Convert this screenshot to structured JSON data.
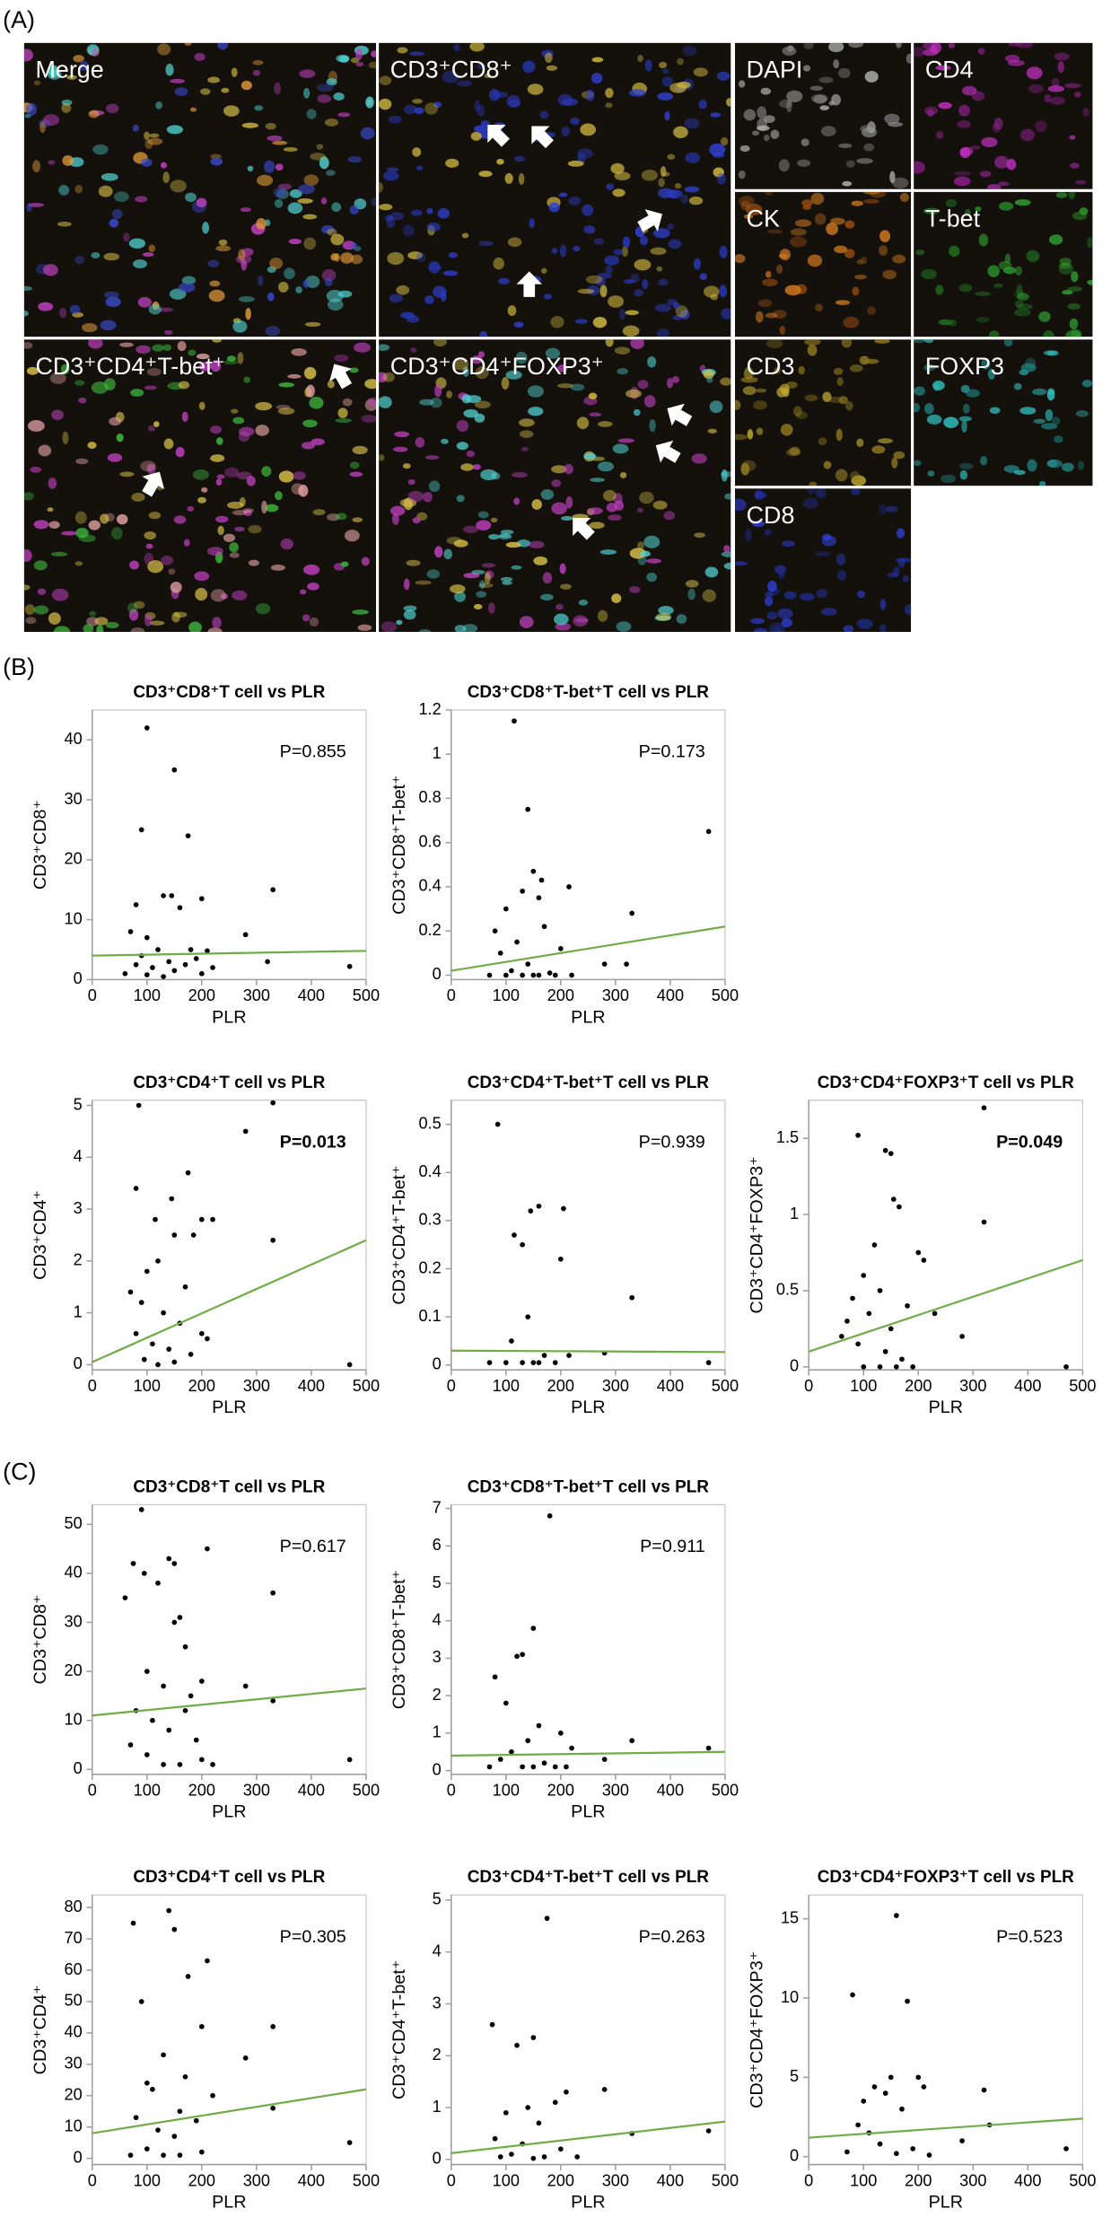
{
  "panel_labels": [
    "(A)",
    "(B)",
    "(C)"
  ],
  "images": {
    "tiles": [
      "Merge",
      "CD3⁺CD8⁺",
      "DAPI",
      "CD4",
      "CK",
      "T-bet",
      "CD3⁺CD4⁺T-bet⁺",
      "CD3⁺CD4⁺FOXP3⁺",
      "CD3",
      "FOXP3",
      "CD8"
    ]
  },
  "chart_data": [
    {
      "type": "scatter",
      "title": "CD3⁺CD8⁺T cell vs PLR",
      "xlabel": "PLR",
      "ylabel": "CD3⁺CD8⁺",
      "p_value": "P=0.855",
      "p_bold": false,
      "xlim": [
        0,
        500
      ],
      "xticks": [
        0,
        100,
        200,
        300,
        400,
        500
      ],
      "ylim": [
        0,
        45
      ],
      "yticks": [
        0,
        10,
        20,
        30,
        40
      ],
      "color": "#000000",
      "x": [
        100,
        150,
        90,
        175,
        330,
        130,
        145,
        200,
        80,
        160,
        280,
        70,
        100,
        120,
        180,
        210,
        90,
        140,
        170,
        110,
        320,
        470,
        60,
        200,
        150,
        130,
        100,
        80,
        220,
        190
      ],
      "values": [
        42,
        35,
        25,
        24,
        15,
        14,
        14,
        13.5,
        12.5,
        12,
        7.5,
        8,
        7,
        5,
        5,
        4.8,
        4,
        3,
        2.5,
        2,
        3,
        2.2,
        1,
        1,
        1.5,
        0.5,
        0.8,
        2.5,
        2,
        3.5
      ],
      "fit": {
        "color": "#70ad47",
        "x": [
          0,
          500
        ],
        "values": [
          4,
          4.8
        ]
      }
    },
    {
      "type": "scatter",
      "title": "CD3⁺CD8⁺T-bet⁺T cell vs PLR",
      "xlabel": "PLR",
      "ylabel": "CD3⁺CD8⁺T-bet⁺",
      "p_value": "P=0.173",
      "p_bold": false,
      "xlim": [
        0,
        500
      ],
      "xticks": [
        0,
        100,
        200,
        300,
        400,
        500
      ],
      "ylim": [
        -0.02,
        1.2
      ],
      "yticks": [
        0,
        0.2,
        0.4,
        0.6,
        0.8,
        1,
        1.2
      ],
      "color": "#000000",
      "x": [
        115,
        140,
        470,
        150,
        165,
        215,
        130,
        160,
        100,
        330,
        80,
        170,
        120,
        200,
        90,
        140,
        280,
        320,
        100,
        130,
        160,
        190,
        220,
        70,
        110,
        180,
        150
      ],
      "values": [
        1.15,
        0.75,
        0.65,
        0.47,
        0.43,
        0.4,
        0.38,
        0.35,
        0.3,
        0.28,
        0.2,
        0.22,
        0.15,
        0.12,
        0.1,
        0.05,
        0.05,
        0.05,
        0,
        0,
        0,
        0,
        0,
        0,
        0.02,
        0.01,
        0
      ],
      "fit": {
        "color": "#70ad47",
        "x": [
          0,
          500
        ],
        "values": [
          0.02,
          0.22
        ]
      }
    },
    {
      "type": "scatter",
      "title": "CD3⁺CD4⁺T cell vs PLR",
      "xlabel": "PLR",
      "ylabel": "CD3⁺CD4⁺",
      "p_value": "P=0.013",
      "p_bold": true,
      "xlim": [
        0,
        500
      ],
      "xticks": [
        0,
        100,
        200,
        300,
        400,
        500
      ],
      "ylim": [
        -0.1,
        5.1
      ],
      "yticks": [
        0,
        1,
        2,
        3,
        4,
        5
      ],
      "color": "#000000",
      "x": [
        85,
        330,
        280,
        175,
        80,
        145,
        200,
        220,
        115,
        150,
        330,
        185,
        120,
        100,
        170,
        70,
        90,
        130,
        160,
        200,
        210,
        110,
        140,
        180,
        95,
        470,
        120,
        150,
        80
      ],
      "values": [
        5,
        5.05,
        4.5,
        3.7,
        3.4,
        3.2,
        2.8,
        2.8,
        2.8,
        2.5,
        2.4,
        2.5,
        2,
        1.8,
        1.5,
        1.4,
        1.2,
        1,
        0.8,
        0.6,
        0.5,
        0.4,
        0.3,
        0.2,
        0.1,
        0,
        0,
        0.05,
        0.6
      ],
      "fit": {
        "color": "#70ad47",
        "x": [
          0,
          500
        ],
        "values": [
          0.05,
          2.4
        ]
      }
    },
    {
      "type": "scatter",
      "title": "CD3⁺CD4⁺T-bet⁺T cell vs PLR",
      "xlabel": "PLR",
      "ylabel": "CD3⁺CD4⁺T-bet⁺",
      "p_value": "P=0.939",
      "p_bold": false,
      "xlim": [
        0,
        500
      ],
      "xticks": [
        0,
        100,
        200,
        300,
        400,
        500
      ],
      "ylim": [
        -0.01,
        0.55
      ],
      "yticks": [
        0,
        0.1,
        0.2,
        0.3,
        0.4,
        0.5
      ],
      "color": "#000000",
      "x": [
        85,
        160,
        145,
        205,
        115,
        130,
        200,
        330,
        140,
        110,
        170,
        215,
        100,
        130,
        160,
        190,
        70,
        280,
        470,
        150
      ],
      "values": [
        0.5,
        0.33,
        0.32,
        0.325,
        0.27,
        0.25,
        0.22,
        0.14,
        0.1,
        0.05,
        0.02,
        0.02,
        0.005,
        0.005,
        0.005,
        0.005,
        0.005,
        0.025,
        0.005,
        0.005
      ],
      "fit": {
        "color": "#70ad47",
        "x": [
          0,
          500
        ],
        "values": [
          0.03,
          0.027
        ]
      }
    },
    {
      "type": "scatter",
      "title": "CD3⁺CD4⁺FOXP3⁺T cell vs PLR",
      "xlabel": "PLR",
      "ylabel": "CD3⁺CD4⁺FOXP3⁺",
      "p_value": "P=0.049",
      "p_bold": true,
      "xlim": [
        0,
        500
      ],
      "xticks": [
        0,
        100,
        200,
        300,
        400,
        500
      ],
      "ylim": [
        -0.02,
        1.75
      ],
      "yticks": [
        0,
        0.5,
        1,
        1.5
      ],
      "color": "#000000",
      "x": [
        320,
        90,
        140,
        150,
        155,
        165,
        320,
        120,
        200,
        210,
        100,
        130,
        80,
        180,
        110,
        230,
        70,
        150,
        280,
        90,
        140,
        170,
        100,
        130,
        160,
        190,
        470,
        60
      ],
      "values": [
        1.7,
        1.52,
        1.42,
        1.4,
        1.1,
        1.05,
        0.95,
        0.8,
        0.75,
        0.7,
        0.6,
        0.5,
        0.45,
        0.4,
        0.35,
        0.35,
        0.3,
        0.25,
        0.2,
        0.15,
        0.1,
        0.05,
        0,
        0,
        0,
        0,
        0,
        0.2
      ],
      "fit": {
        "color": "#70ad47",
        "x": [
          0,
          500
        ],
        "values": [
          0.1,
          0.7
        ]
      }
    },
    {
      "type": "scatter",
      "title": "CD3⁺CD8⁺T cell vs PLR",
      "xlabel": "PLR",
      "ylabel": "CD3⁺CD8⁺",
      "p_value": "P=0.617",
      "p_bold": false,
      "xlim": [
        0,
        500
      ],
      "xticks": [
        0,
        100,
        200,
        300,
        400,
        500
      ],
      "ylim": [
        -1,
        54
      ],
      "yticks": [
        0,
        10,
        20,
        30,
        40,
        50
      ],
      "color": "#000000",
      "x": [
        90,
        75,
        95,
        140,
        150,
        210,
        120,
        330,
        160,
        150,
        170,
        100,
        200,
        280,
        130,
        180,
        330,
        80,
        110,
        140,
        190,
        70,
        100,
        130,
        160,
        200,
        470,
        220,
        60,
        170
      ],
      "values": [
        53,
        42,
        40,
        43,
        42,
        45,
        38,
        36,
        31,
        30,
        25,
        20,
        18,
        17,
        17,
        15,
        14,
        12,
        10,
        8,
        6,
        5,
        3,
        1,
        1,
        2,
        2,
        1,
        35,
        12
      ],
      "fit": {
        "color": "#70ad47",
        "x": [
          0,
          500
        ],
        "values": [
          11,
          16.5
        ]
      }
    },
    {
      "type": "scatter",
      "title": "CD3⁺CD8⁺T-bet⁺T cell vs PLR",
      "xlabel": "PLR",
      "ylabel": "CD3⁺CD8⁺T-bet⁺",
      "p_value": "P=0.911",
      "p_bold": false,
      "xlim": [
        0,
        500
      ],
      "xticks": [
        0,
        100,
        200,
        300,
        400,
        500
      ],
      "ylim": [
        -0.1,
        7.1
      ],
      "yticks": [
        0,
        1,
        2,
        3,
        4,
        5,
        6,
        7
      ],
      "color": "#000000",
      "x": [
        180,
        150,
        130,
        120,
        80,
        100,
        160,
        200,
        140,
        330,
        470,
        110,
        220,
        90,
        170,
        280,
        70,
        130,
        190,
        150,
        210
      ],
      "values": [
        6.8,
        3.8,
        3.1,
        3.05,
        2.5,
        1.8,
        1.2,
        1,
        0.8,
        0.8,
        0.6,
        0.5,
        0.6,
        0.3,
        0.2,
        0.3,
        0.1,
        0.1,
        0.1,
        0.1,
        0.1
      ],
      "fit": {
        "color": "#70ad47",
        "x": [
          0,
          500
        ],
        "values": [
          0.4,
          0.5
        ]
      }
    },
    {
      "type": "scatter",
      "title": "CD3⁺CD4⁺T cell vs PLR",
      "xlabel": "PLR",
      "ylabel": "CD3⁺CD4⁺",
      "p_value": "P=0.305",
      "p_bold": false,
      "xlim": [
        0,
        500
      ],
      "xticks": [
        0,
        100,
        200,
        300,
        400,
        500
      ],
      "ylim": [
        -2,
        84
      ],
      "yticks": [
        0,
        10,
        20,
        30,
        40,
        50,
        60,
        70,
        80
      ],
      "color": "#000000",
      "x": [
        140,
        75,
        150,
        175,
        210,
        90,
        200,
        330,
        280,
        130,
        170,
        100,
        110,
        220,
        330,
        160,
        80,
        190,
        120,
        150,
        470,
        100,
        130,
        160,
        200,
        70
      ],
      "values": [
        79,
        75,
        73,
        58,
        63,
        50,
        42,
        42,
        32,
        33,
        26,
        24,
        22,
        20,
        16,
        15,
        13,
        12,
        9,
        7,
        5,
        3,
        1,
        1,
        2,
        1
      ],
      "fit": {
        "color": "#70ad47",
        "x": [
          0,
          500
        ],
        "values": [
          8,
          22
        ]
      }
    },
    {
      "type": "scatter",
      "title": "CD3⁺CD4⁺T-bet⁺T cell vs PLR",
      "xlabel": "PLR",
      "ylabel": "CD3⁺CD4⁺T-bet⁺",
      "p_value": "P=0.263",
      "p_bold": false,
      "xlim": [
        0,
        500
      ],
      "xticks": [
        0,
        100,
        200,
        300,
        400,
        500
      ],
      "ylim": [
        -0.1,
        5.1
      ],
      "yticks": [
        0,
        1,
        2,
        3,
        4,
        5
      ],
      "color": "#000000",
      "x": [
        175,
        75,
        150,
        120,
        280,
        210,
        190,
        140,
        100,
        160,
        330,
        470,
        80,
        130,
        200,
        110,
        170,
        90,
        230,
        150
      ],
      "values": [
        4.65,
        2.6,
        2.35,
        2.2,
        1.35,
        1.3,
        1.1,
        1,
        0.9,
        0.7,
        0.5,
        0.55,
        0.4,
        0.3,
        0.2,
        0.1,
        0.05,
        0.05,
        0.05,
        0.02
      ],
      "fit": {
        "color": "#70ad47",
        "x": [
          0,
          500
        ],
        "values": [
          0.12,
          0.73
        ]
      }
    },
    {
      "type": "scatter",
      "title": "CD3⁺CD4⁺FOXP3⁺T cell vs PLR",
      "xlabel": "PLR",
      "ylabel": "CD3⁺CD4⁺FOXP3⁺",
      "p_value": "P=0.523",
      "p_bold": false,
      "xlim": [
        0,
        500
      ],
      "xticks": [
        0,
        100,
        200,
        300,
        400,
        500
      ],
      "ylim": [
        -0.5,
        16.5
      ],
      "yticks": [
        0,
        5,
        10,
        15
      ],
      "color": "#000000",
      "x": [
        160,
        80,
        180,
        150,
        200,
        320,
        210,
        120,
        140,
        100,
        170,
        330,
        90,
        110,
        280,
        470,
        130,
        190,
        70,
        160,
        220
      ],
      "values": [
        15.2,
        10.2,
        9.8,
        5,
        5,
        4.2,
        4.4,
        4.4,
        4,
        3.5,
        3,
        2,
        2,
        1.5,
        1,
        0.5,
        0.8,
        0.5,
        0.3,
        0.2,
        0.1
      ],
      "fit": {
        "color": "#70ad47",
        "x": [
          0,
          500
        ],
        "values": [
          1.2,
          2.4
        ]
      }
    }
  ]
}
